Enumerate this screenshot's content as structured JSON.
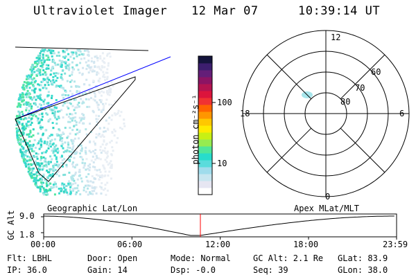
{
  "header": {
    "instrument": "Ultraviolet Imager",
    "date": "12 Mar 07",
    "time": "10:39:14 UT"
  },
  "colorbar": {
    "unit_label": "photon cm⁻²s⁻¹",
    "ticks": [
      {
        "label": "100",
        "value": 100
      },
      {
        "label": "10",
        "value": 10
      }
    ],
    "colors": [
      "#ffffff",
      "#e6e6f2",
      "#c8e6f0",
      "#a0dcec",
      "#5adcdc",
      "#28dccc",
      "#50e69a",
      "#96eb50",
      "#c8f014",
      "#ffeb00",
      "#ffc800",
      "#ff9600",
      "#ff6400",
      "#f03232",
      "#dc143c",
      "#b41450",
      "#8c1464",
      "#641e78",
      "#3c1e6e",
      "#14143c"
    ]
  },
  "polar_plot": {
    "clock_labels": [
      "12",
      "18",
      "6",
      "0"
    ],
    "lat_labels": [
      "60",
      "70",
      "80"
    ],
    "lat_rings": [
      60,
      70,
      80
    ]
  },
  "timeline": {
    "y_label": "GC Alt",
    "y_ticks": [
      "9.0",
      "1.8"
    ],
    "left_label": "Geographic Lat/Lon",
    "right_label": "Apex MLat/MLT",
    "x_ticks": [
      "00:00",
      "06:00",
      "12:00",
      "18:00",
      "23:59"
    ],
    "marker_time": "10:39",
    "marker_color": "#ff0000"
  },
  "info": {
    "filter": "Flt: LBHL",
    "ip": "IP: 36.0",
    "door": "Door: Open",
    "gain": "Gain: 14",
    "mode": "Mode: Normal",
    "dsp": "Dsp:   -0.0",
    "gc_alt": "GC Alt: 2.1 Re",
    "seq": "Seq: 39",
    "glat": "GLat:  83.9",
    "glon": "GLon:  38.0"
  }
}
